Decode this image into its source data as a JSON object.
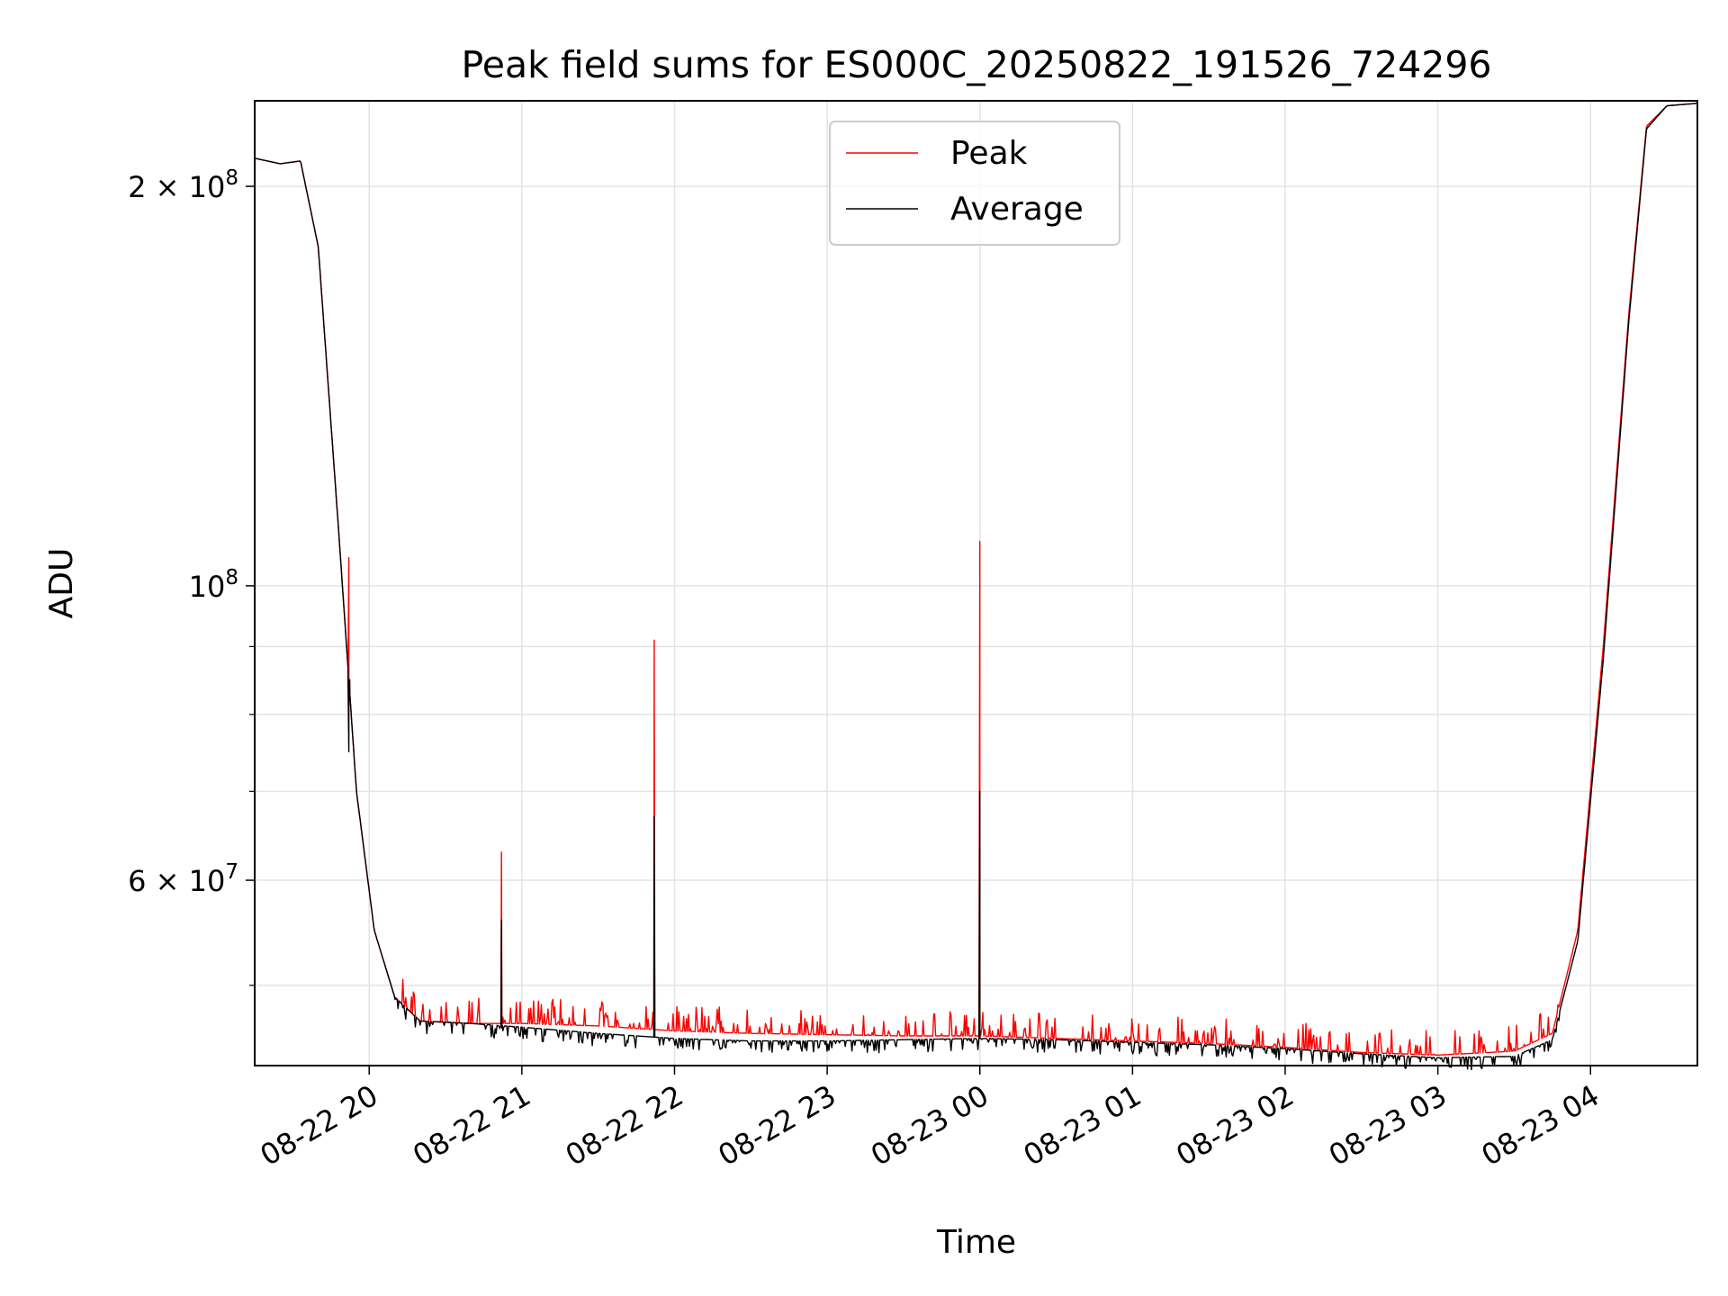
{
  "chart_data": {
    "type": "line",
    "title": "Peak field sums for ES000C_20250822_191526_724296",
    "xlabel": "Time",
    "ylabel": "ADU",
    "yscale": "log",
    "xlim": [
      "2025-08-22 19:15",
      "2025-08-23 04:42"
    ],
    "ylim": [
      43500000,
      232000000
    ],
    "grid": true,
    "legend": "top-center",
    "x_ticks": [
      "08-22 20",
      "08-22 21",
      "08-22 22",
      "08-22 23",
      "08-23 00",
      "08-23 01",
      "08-23 02",
      "08-23 03",
      "08-23 04"
    ],
    "y_major_ticks": [
      {
        "value": 100000000,
        "base": "10",
        "exp": "8",
        "mantissa": ""
      },
      {
        "value": 200000000,
        "base": "10",
        "exp": "8",
        "mantissa": "2 × "
      },
      {
        "value": 60000000,
        "base": "10",
        "exp": "7",
        "mantissa": "6 × "
      }
    ],
    "y_minor_ticks": [
      50000000,
      70000000,
      80000000,
      90000000
    ],
    "series": [
      {
        "name": "Peak",
        "color": "#ff0000",
        "baseline": [
          [
            "2025-08-22 19:15",
            210000000
          ],
          [
            "2025-08-22 19:25",
            208000000
          ],
          [
            "2025-08-22 19:33",
            209000000
          ],
          [
            "2025-08-22 19:40",
            180000000
          ],
          [
            "2025-08-22 19:48",
            110000000
          ],
          [
            "2025-08-22 19:55",
            70000000
          ],
          [
            "2025-08-22 20:02",
            55000000
          ],
          [
            "2025-08-22 20:10",
            49000000
          ],
          [
            "2025-08-22 20:20",
            47000000
          ],
          [
            "2025-08-22 20:40",
            46800000
          ],
          [
            "2025-08-22 21:00",
            46800000
          ],
          [
            "2025-08-22 21:30",
            46600000
          ],
          [
            "2025-08-22 22:00",
            46200000
          ],
          [
            "2025-08-22 22:30",
            46000000
          ],
          [
            "2025-08-22 23:00",
            45900000
          ],
          [
            "2025-08-22 23:30",
            45800000
          ],
          [
            "2025-08-23 00:00",
            45800000
          ],
          [
            "2025-08-23 00:30",
            45600000
          ],
          [
            "2025-08-23 01:00",
            45400000
          ],
          [
            "2025-08-23 01:30",
            45200000
          ],
          [
            "2025-08-23 02:00",
            44900000
          ],
          [
            "2025-08-23 02:30",
            44500000
          ],
          [
            "2025-08-23 03:00",
            44300000
          ],
          [
            "2025-08-23 03:30",
            44600000
          ],
          [
            "2025-08-23 03:45",
            46000000
          ],
          [
            "2025-08-23 03:55",
            55000000
          ],
          [
            "2025-08-23 04:05",
            90000000
          ],
          [
            "2025-08-23 04:15",
            160000000
          ],
          [
            "2025-08-23 04:22",
            222000000
          ],
          [
            "2025-08-23 04:30",
            230000000
          ],
          [
            "2025-08-23 04:42",
            231000000
          ]
        ],
        "spikes": [
          [
            "2025-08-22 19:52",
            105000000
          ],
          [
            "2025-08-22 20:52",
            63000000
          ],
          [
            "2025-08-22 21:52",
            91000000
          ],
          [
            "2025-08-23 00:00",
            108000000
          ]
        ]
      },
      {
        "name": "Average",
        "color": "#000000",
        "baseline": [
          [
            "2025-08-22 19:15",
            210000000
          ],
          [
            "2025-08-22 19:25",
            208000000
          ],
          [
            "2025-08-22 19:33",
            209000000
          ],
          [
            "2025-08-22 19:40",
            180000000
          ],
          [
            "2025-08-22 19:48",
            110000000
          ],
          [
            "2025-08-22 19:55",
            70000000
          ],
          [
            "2025-08-22 20:02",
            55000000
          ],
          [
            "2025-08-22 20:10",
            49000000
          ],
          [
            "2025-08-22 20:20",
            47000000
          ],
          [
            "2025-08-22 20:40",
            46800000
          ],
          [
            "2025-08-22 21:00",
            46500000
          ],
          [
            "2025-08-22 21:30",
            46000000
          ],
          [
            "2025-08-22 22:00",
            45600000
          ],
          [
            "2025-08-22 22:30",
            45400000
          ],
          [
            "2025-08-22 23:00",
            45400000
          ],
          [
            "2025-08-22 23:30",
            45500000
          ],
          [
            "2025-08-23 00:00",
            45600000
          ],
          [
            "2025-08-23 00:30",
            45500000
          ],
          [
            "2025-08-23 01:00",
            45300000
          ],
          [
            "2025-08-23 01:30",
            45100000
          ],
          [
            "2025-08-23 02:00",
            44800000
          ],
          [
            "2025-08-23 02:30",
            44400000
          ],
          [
            "2025-08-23 03:00",
            44100000
          ],
          [
            "2025-08-23 03:30",
            44200000
          ],
          [
            "2025-08-23 03:45",
            45500000
          ],
          [
            "2025-08-23 03:55",
            54000000
          ],
          [
            "2025-08-23 04:05",
            88000000
          ],
          [
            "2025-08-23 04:15",
            158000000
          ],
          [
            "2025-08-23 04:22",
            221000000
          ],
          [
            "2025-08-23 04:30",
            230000000
          ],
          [
            "2025-08-23 04:42",
            231000000
          ]
        ],
        "spikes": [
          [
            "2025-08-22 19:52",
            75000000
          ],
          [
            "2025-08-22 20:52",
            56000000
          ],
          [
            "2025-08-22 21:52",
            67000000
          ],
          [
            "2025-08-23 00:00",
            70000000
          ]
        ]
      }
    ]
  }
}
